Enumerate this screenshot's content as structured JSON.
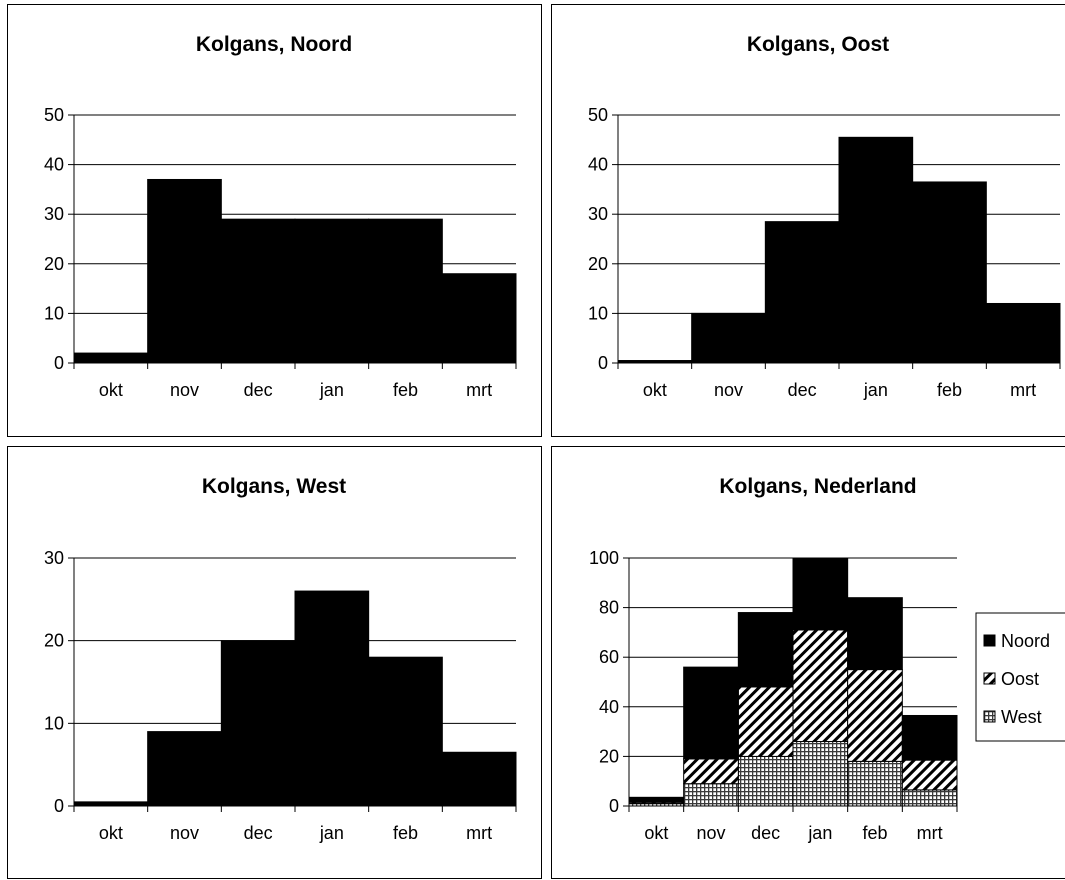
{
  "page": {
    "background": "#ffffff",
    "ink_color": "#000000"
  },
  "chart_data": [
    {
      "type": "bar",
      "title": "Kolgans, Noord",
      "xlabel": "",
      "ylabel": "",
      "categories": [
        "okt",
        "nov",
        "dec",
        "jan",
        "feb",
        "mrt"
      ],
      "values": [
        2,
        37,
        29,
        29,
        29,
        18
      ],
      "ylim": [
        0,
        50
      ],
      "yticks": [
        0,
        10,
        20,
        30,
        40,
        50
      ],
      "grid": true,
      "bar_color": "#000000"
    },
    {
      "type": "bar",
      "title": "Kolgans, Oost",
      "xlabel": "",
      "ylabel": "",
      "categories": [
        "okt",
        "nov",
        "dec",
        "jan",
        "feb",
        "mrt"
      ],
      "values": [
        0.5,
        10,
        28.5,
        45.5,
        36.5,
        12
      ],
      "ylim": [
        0,
        50
      ],
      "yticks": [
        0,
        10,
        20,
        30,
        40,
        50
      ],
      "grid": true,
      "bar_color": "#000000"
    },
    {
      "type": "bar",
      "title": "Kolgans, West",
      "xlabel": "",
      "ylabel": "",
      "categories": [
        "okt",
        "nov",
        "dec",
        "jan",
        "feb",
        "mrt"
      ],
      "values": [
        0.5,
        9,
        20,
        26,
        18,
        6.5
      ],
      "ylim": [
        0,
        30
      ],
      "yticks": [
        0,
        10,
        20,
        30
      ],
      "grid": true,
      "bar_color": "#000000"
    },
    {
      "type": "bar",
      "stacked": true,
      "title": "Kolgans, Nederland",
      "xlabel": "",
      "ylabel": "",
      "categories": [
        "okt",
        "nov",
        "dec",
        "jan",
        "feb",
        "mrt"
      ],
      "series": [
        {
          "name": "West",
          "values": [
            1,
            9,
            20,
            26,
            18,
            6.5
          ],
          "pattern": "crosshatch"
        },
        {
          "name": "Oost",
          "values": [
            0.5,
            10,
            28,
            45,
            37,
            12
          ],
          "pattern": "diagonal"
        },
        {
          "name": "Noord",
          "values": [
            2,
            37,
            30,
            29,
            29,
            18
          ],
          "pattern": "solid"
        }
      ],
      "ylim": [
        0,
        100
      ],
      "yticks": [
        0,
        20,
        40,
        60,
        80,
        100
      ],
      "grid": true,
      "legend": {
        "position": "right",
        "order": [
          "Noord",
          "Oost",
          "West"
        ]
      }
    }
  ]
}
